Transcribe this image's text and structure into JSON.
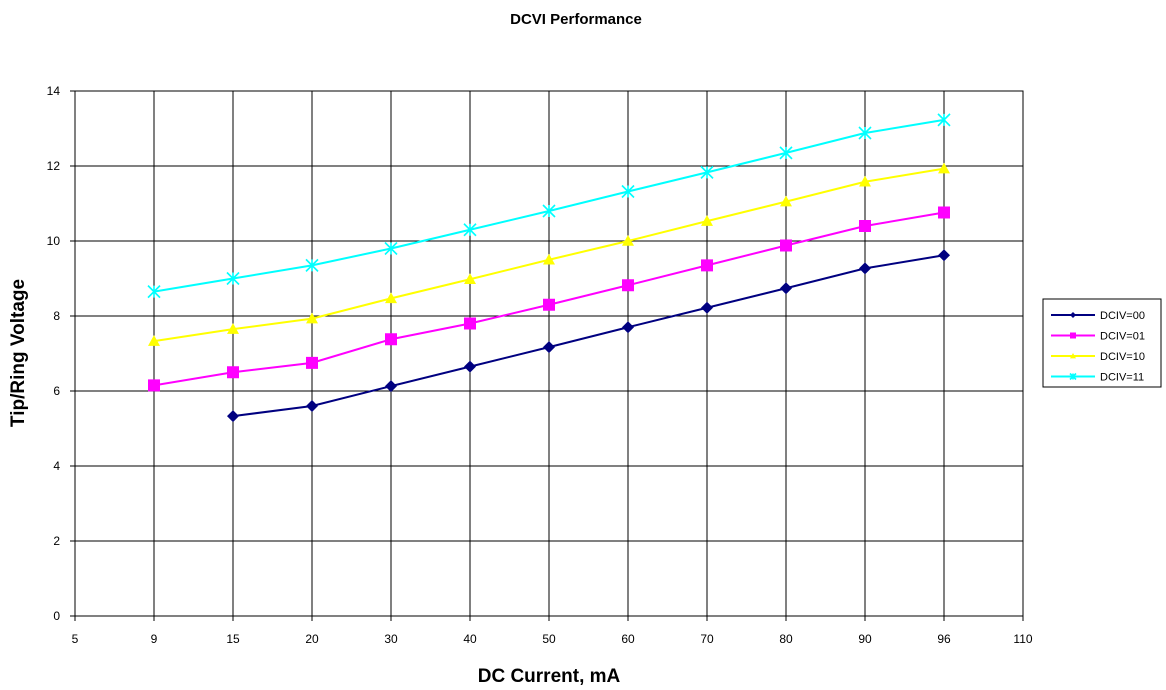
{
  "chart_data": {
    "type": "line",
    "title": "DCVI Performance",
    "xlabel": "DC Current, mA",
    "ylabel": "Tip/Ring Voltage",
    "x_ticks": [
      "5",
      "9",
      "15",
      "20",
      "30",
      "40",
      "50",
      "60",
      "70",
      "80",
      "90",
      "96",
      "110"
    ],
    "categories": [
      "9",
      "15",
      "20",
      "30",
      "40",
      "50",
      "60",
      "70",
      "80",
      "90",
      "96"
    ],
    "ylim": [
      0,
      14
    ],
    "y_ticks": [
      0,
      2,
      4,
      6,
      8,
      10,
      12,
      14
    ],
    "grid": true,
    "legend_position": "right",
    "series": [
      {
        "name": "DCIV=00",
        "color": "#000080",
        "marker": "diamond",
        "values": [
          null,
          5.33,
          5.6,
          6.13,
          6.65,
          7.17,
          7.7,
          8.22,
          8.74,
          9.27,
          9.62
        ]
      },
      {
        "name": "DCIV=01",
        "color": "#ff00ff",
        "marker": "square",
        "values": [
          6.15,
          6.5,
          6.75,
          7.38,
          7.8,
          8.3,
          8.82,
          9.35,
          9.88,
          10.4,
          10.76
        ]
      },
      {
        "name": "DCIV=10",
        "color": "#ffff00",
        "marker": "triangle",
        "values": [
          7.33,
          7.65,
          7.93,
          8.47,
          8.98,
          9.5,
          10.0,
          10.53,
          11.05,
          11.58,
          11.93
        ]
      },
      {
        "name": "DCIV=11",
        "color": "#00ffff",
        "marker": "x",
        "values": [
          8.65,
          9.0,
          9.35,
          9.8,
          10.3,
          10.8,
          11.32,
          11.83,
          12.35,
          12.88,
          13.23
        ]
      }
    ]
  }
}
